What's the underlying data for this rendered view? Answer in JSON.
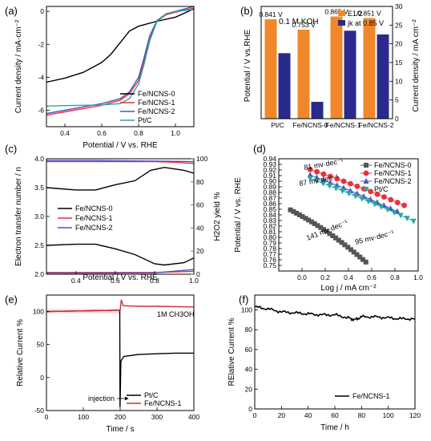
{
  "chart_data": [
    {
      "panel_label": "(a)",
      "type": "line",
      "xlabel": "Potential / V vs. RHE",
      "ylabel": "Current density / mA·cm⁻²",
      "xlim": [
        0.3,
        1.1
      ],
      "ylim": [
        -7,
        0.3
      ],
      "xticks": [
        0.4,
        0.6,
        0.8,
        1.0
      ],
      "yticks": [
        0,
        -2,
        -4,
        -6
      ],
      "legend_position": "bottom-right",
      "series": [
        {
          "name": "Fe/NCNS-0",
          "color": "#000000",
          "points": [
            [
              0.3,
              -4.3
            ],
            [
              0.4,
              -4.05
            ],
            [
              0.5,
              -3.7
            ],
            [
              0.6,
              -3.1
            ],
            [
              0.65,
              -2.6
            ],
            [
              0.7,
              -1.9
            ],
            [
              0.75,
              -1.2
            ],
            [
              0.8,
              -0.9
            ],
            [
              0.85,
              -0.75
            ],
            [
              0.9,
              -0.6
            ],
            [
              1.0,
              -0.35
            ],
            [
              1.1,
              0.15
            ]
          ]
        },
        {
          "name": "Fe/NCNS-1",
          "color": "#e8323a",
          "points": [
            [
              0.3,
              -6.3
            ],
            [
              0.4,
              -6.1
            ],
            [
              0.5,
              -5.9
            ],
            [
              0.6,
              -5.7
            ],
            [
              0.7,
              -5.4
            ],
            [
              0.75,
              -5.0
            ],
            [
              0.8,
              -4.2
            ],
            [
              0.83,
              -3.0
            ],
            [
              0.86,
              -1.6
            ],
            [
              0.9,
              -0.6
            ],
            [
              0.95,
              -0.2
            ],
            [
              1.0,
              -0.05
            ],
            [
              1.1,
              0.2
            ]
          ]
        },
        {
          "name": "Fe/NCNS-2",
          "color": "#4a52c8",
          "points": [
            [
              0.3,
              -6.2
            ],
            [
              0.4,
              -6.0
            ],
            [
              0.5,
              -5.8
            ],
            [
              0.6,
              -5.6
            ],
            [
              0.7,
              -5.3
            ],
            [
              0.75,
              -4.9
            ],
            [
              0.8,
              -4.0
            ],
            [
              0.83,
              -2.8
            ],
            [
              0.86,
              -1.5
            ],
            [
              0.9,
              -0.55
            ],
            [
              0.95,
              -0.15
            ],
            [
              1.0,
              0.0
            ],
            [
              1.1,
              0.3
            ]
          ]
        },
        {
          "name": "Pt/C",
          "color": "#28a89c",
          "points": [
            [
              0.3,
              -5.75
            ],
            [
              0.4,
              -5.72
            ],
            [
              0.5,
              -5.7
            ],
            [
              0.6,
              -5.68
            ],
            [
              0.7,
              -5.6
            ],
            [
              0.75,
              -5.3
            ],
            [
              0.8,
              -4.4
            ],
            [
              0.83,
              -3.2
            ],
            [
              0.86,
              -1.8
            ],
            [
              0.9,
              -0.6
            ],
            [
              0.95,
              -0.15
            ],
            [
              1.0,
              0.0
            ],
            [
              1.1,
              0.1
            ]
          ]
        }
      ]
    },
    {
      "panel_label": "(b)",
      "type": "bar",
      "categories": [
        "Pt/C",
        "Fe/NCNS-0",
        "Fe/NCNS-1",
        "Fe/NCNS-2"
      ],
      "annotation": "0.1 M KOH",
      "ylabel": "Potential / V vs.RHE",
      "y2label": "Current density / mA cm⁻²",
      "y2lim": [
        0,
        30
      ],
      "y2ticks": [
        0,
        5,
        10,
        15,
        20,
        25,
        30
      ],
      "legend_position": "top-right",
      "series": [
        {
          "name": "E1/2",
          "color": "#f0882a",
          "values": [
            0.841,
            0.753,
            0.865,
            0.851
          ],
          "labels": [
            "0.841 V",
            "0.753 V",
            "0.865 V",
            "0.851 V"
          ]
        },
        {
          "name": "jk at 0.85 V",
          "color": "#2a2a8c",
          "values": [
            17.5,
            4.5,
            23.5,
            22.5
          ]
        }
      ]
    },
    {
      "panel_label": "(c)",
      "type": "line",
      "xlabel": "Potential / V vs. RHE",
      "ylabel": "Electron transfer number / n",
      "y2label": "H2O2 yield %",
      "xlim": [
        0.25,
        1.0
      ],
      "ylim": [
        2.0,
        4.0
      ],
      "y2lim": [
        0,
        100
      ],
      "xticks": [
        0.4,
        0.6,
        0.8,
        1.0
      ],
      "yticks": [
        2.0,
        2.5,
        3.0,
        3.5,
        4.0
      ],
      "y2ticks": [
        0,
        20,
        40,
        60,
        80,
        100
      ],
      "legend_position": "center",
      "series": [
        {
          "name": "Fe/NCNS-0",
          "color": "#000000",
          "n": [
            [
              0.25,
              3.5
            ],
            [
              0.4,
              3.46
            ],
            [
              0.5,
              3.46
            ],
            [
              0.6,
              3.55
            ],
            [
              0.7,
              3.62
            ],
            [
              0.78,
              3.8
            ],
            [
              0.85,
              3.85
            ],
            [
              0.95,
              3.8
            ],
            [
              1.0,
              3.75
            ]
          ],
          "yield": [
            [
              0.25,
              25
            ],
            [
              0.4,
              26
            ],
            [
              0.5,
              26
            ],
            [
              0.6,
              22
            ],
            [
              0.7,
              17
            ],
            [
              0.8,
              9
            ],
            [
              0.85,
              8
            ],
            [
              0.95,
              10
            ],
            [
              1.0,
              14
            ]
          ]
        },
        {
          "name": "Fe/NCNS-1",
          "color": "#e8323a",
          "n": [
            [
              0.25,
              3.95
            ],
            [
              0.5,
              3.95
            ],
            [
              0.8,
              3.95
            ],
            [
              0.9,
              3.94
            ],
            [
              1.0,
              3.92
            ]
          ],
          "yield": [
            [
              0.25,
              1.5
            ],
            [
              0.5,
              1.5
            ],
            [
              0.8,
              1.5
            ],
            [
              1.0,
              2.5
            ]
          ]
        },
        {
          "name": "Fe/NCNS-2",
          "color": "#4a52c8",
          "n": [
            [
              0.25,
              3.97
            ],
            [
              0.5,
              3.97
            ],
            [
              0.8,
              3.96
            ],
            [
              1.0,
              3.95
            ]
          ],
          "yield": [
            [
              0.25,
              1.0
            ],
            [
              0.5,
              1.0
            ],
            [
              0.8,
              1.2
            ],
            [
              1.0,
              4.0
            ]
          ]
        }
      ]
    },
    {
      "panel_label": "(d)",
      "type": "scatter",
      "xlabel": "Log j  / mA cm⁻²",
      "ylabel": "Potential / V vs. RHE",
      "xlim": [
        -0.2,
        1.0
      ],
      "ylim": [
        0.74,
        0.94
      ],
      "xticks": [
        0.0,
        0.2,
        0.4,
        0.6,
        0.8,
        1.0
      ],
      "yticks": [
        0.75,
        0.76,
        0.77,
        0.78,
        0.79,
        0.8,
        0.81,
        0.82,
        0.83,
        0.84,
        0.85,
        0.86,
        0.87,
        0.88,
        0.89,
        0.9,
        0.91,
        0.92,
        0.93,
        0.94
      ],
      "legend_position": "top-right",
      "annotations": [
        "81 mv·dec⁻¹",
        "87 mv·dec⁻¹",
        "95 mv·dec⁻¹",
        "141 mv·dec⁻¹"
      ],
      "series": [
        {
          "name": "Fe/NCNS-0",
          "color": "#555555",
          "marker": "square",
          "x0": -0.1,
          "x1": 0.55,
          "y0": 0.849,
          "y1": 0.756,
          "n": 26
        },
        {
          "name": "Fe/NCNS-1",
          "color": "#e8323a",
          "marker": "circle",
          "x0": 0.07,
          "x1": 0.88,
          "y0": 0.921,
          "y1": 0.857,
          "n": 15
        },
        {
          "name": "Fe/NCNS-2",
          "color": "#4a52c8",
          "marker": "triangle-up",
          "x0": 0.07,
          "x1": 0.82,
          "y0": 0.911,
          "y1": 0.846,
          "n": 14
        },
        {
          "name": "Pt/C",
          "color": "#28a89c",
          "marker": "triangle-down",
          "x0": 0.07,
          "x1": 0.96,
          "y0": 0.905,
          "y1": 0.829,
          "n": 17
        }
      ]
    },
    {
      "panel_label": "(e)",
      "type": "line",
      "xlabel": "Time / s",
      "ylabel": "Relative Current %",
      "xlim": [
        0,
        400
      ],
      "ylim": [
        -50,
        125
      ],
      "xticks": [
        0,
        100,
        200,
        300,
        400
      ],
      "yticks": [
        -50,
        0,
        50,
        100
      ],
      "legend_position": "bottom-right",
      "annotations": [
        "1M CH3OH",
        "injection"
      ],
      "series": [
        {
          "name": "Pt/C",
          "color": "#000000",
          "points": [
            [
              0,
              100
            ],
            [
              100,
              101
            ],
            [
              195,
              102
            ],
            [
              199,
              102
            ],
            [
              199.5,
              -45
            ],
            [
              202,
              25
            ],
            [
              210,
              32
            ],
            [
              250,
              35
            ],
            [
              300,
              36
            ],
            [
              350,
              37
            ],
            [
              400,
              37
            ]
          ]
        },
        {
          "name": "Fe/NCNS-1",
          "color": "#d0303a",
          "points": [
            [
              0,
              100
            ],
            [
              100,
              101
            ],
            [
              195,
              102
            ],
            [
              200,
              102
            ],
            [
              203,
              118
            ],
            [
              208,
              109
            ],
            [
              250,
              108
            ],
            [
              300,
              108
            ],
            [
              400,
              107
            ]
          ]
        }
      ]
    },
    {
      "panel_label": "(f)",
      "type": "line",
      "xlabel": "Time / h",
      "ylabel": "RElative Current %",
      "xlim": [
        0,
        120
      ],
      "ylim": [
        0,
        115
      ],
      "xticks": [
        0,
        20,
        40,
        60,
        80,
        100,
        120
      ],
      "yticks": [
        0,
        20,
        40,
        60,
        80,
        100
      ],
      "legend_position": "bottom-right",
      "series": [
        {
          "name": "Fe/NCNS-1",
          "color": "#000000",
          "points": [
            [
              0,
              103
            ],
            [
              10,
              101
            ],
            [
              20,
              98
            ],
            [
              30,
              97
            ],
            [
              40,
              96
            ],
            [
              50,
              95
            ],
            [
              60,
              95
            ],
            [
              70,
              92
            ],
            [
              75,
              90
            ],
            [
              80,
              93
            ],
            [
              90,
              93
            ],
            [
              100,
              92
            ],
            [
              110,
              91
            ],
            [
              120,
              91
            ]
          ]
        }
      ]
    }
  ]
}
